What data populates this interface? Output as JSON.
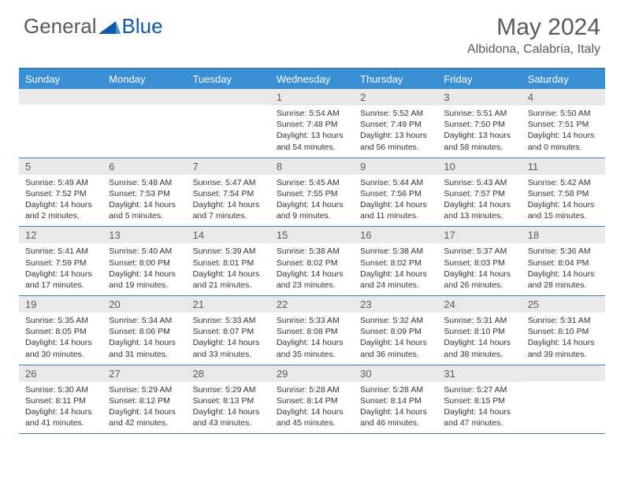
{
  "logo": {
    "text1": "General",
    "text2": "Blue",
    "color1": "#6a6a6a",
    "color2": "#3b8fd4",
    "tri_color": "#0d5aa7"
  },
  "title": "May 2024",
  "location": "Albidona, Calabria, Italy",
  "accent": "#3b8fd4",
  "border": "#3b7fbf",
  "daynum_bg": "#e9e9e9",
  "dow": [
    "Sunday",
    "Monday",
    "Tuesday",
    "Wednesday",
    "Thursday",
    "Friday",
    "Saturday"
  ],
  "weeks": [
    [
      null,
      null,
      null,
      {
        "n": "1",
        "sr": "5:54 AM",
        "ss": "7:48 PM",
        "dl": "13 hours and 54 minutes."
      },
      {
        "n": "2",
        "sr": "5:52 AM",
        "ss": "7:49 PM",
        "dl": "13 hours and 56 minutes."
      },
      {
        "n": "3",
        "sr": "5:51 AM",
        "ss": "7:50 PM",
        "dl": "13 hours and 58 minutes."
      },
      {
        "n": "4",
        "sr": "5:50 AM",
        "ss": "7:51 PM",
        "dl": "14 hours and 0 minutes."
      }
    ],
    [
      {
        "n": "5",
        "sr": "5:49 AM",
        "ss": "7:52 PM",
        "dl": "14 hours and 2 minutes."
      },
      {
        "n": "6",
        "sr": "5:48 AM",
        "ss": "7:53 PM",
        "dl": "14 hours and 5 minutes."
      },
      {
        "n": "7",
        "sr": "5:47 AM",
        "ss": "7:54 PM",
        "dl": "14 hours and 7 minutes."
      },
      {
        "n": "8",
        "sr": "5:45 AM",
        "ss": "7:55 PM",
        "dl": "14 hours and 9 minutes."
      },
      {
        "n": "9",
        "sr": "5:44 AM",
        "ss": "7:56 PM",
        "dl": "14 hours and 11 minutes."
      },
      {
        "n": "10",
        "sr": "5:43 AM",
        "ss": "7:57 PM",
        "dl": "14 hours and 13 minutes."
      },
      {
        "n": "11",
        "sr": "5:42 AM",
        "ss": "7:58 PM",
        "dl": "14 hours and 15 minutes."
      }
    ],
    [
      {
        "n": "12",
        "sr": "5:41 AM",
        "ss": "7:59 PM",
        "dl": "14 hours and 17 minutes."
      },
      {
        "n": "13",
        "sr": "5:40 AM",
        "ss": "8:00 PM",
        "dl": "14 hours and 19 minutes."
      },
      {
        "n": "14",
        "sr": "5:39 AM",
        "ss": "8:01 PM",
        "dl": "14 hours and 21 minutes."
      },
      {
        "n": "15",
        "sr": "5:38 AM",
        "ss": "8:02 PM",
        "dl": "14 hours and 23 minutes."
      },
      {
        "n": "16",
        "sr": "5:38 AM",
        "ss": "8:02 PM",
        "dl": "14 hours and 24 minutes."
      },
      {
        "n": "17",
        "sr": "5:37 AM",
        "ss": "8:03 PM",
        "dl": "14 hours and 26 minutes."
      },
      {
        "n": "18",
        "sr": "5:36 AM",
        "ss": "8:04 PM",
        "dl": "14 hours and 28 minutes."
      }
    ],
    [
      {
        "n": "19",
        "sr": "5:35 AM",
        "ss": "8:05 PM",
        "dl": "14 hours and 30 minutes."
      },
      {
        "n": "20",
        "sr": "5:34 AM",
        "ss": "8:06 PM",
        "dl": "14 hours and 31 minutes."
      },
      {
        "n": "21",
        "sr": "5:33 AM",
        "ss": "8:07 PM",
        "dl": "14 hours and 33 minutes."
      },
      {
        "n": "22",
        "sr": "5:33 AM",
        "ss": "8:08 PM",
        "dl": "14 hours and 35 minutes."
      },
      {
        "n": "23",
        "sr": "5:32 AM",
        "ss": "8:09 PM",
        "dl": "14 hours and 36 minutes."
      },
      {
        "n": "24",
        "sr": "5:31 AM",
        "ss": "8:10 PM",
        "dl": "14 hours and 38 minutes."
      },
      {
        "n": "25",
        "sr": "5:31 AM",
        "ss": "8:10 PM",
        "dl": "14 hours and 39 minutes."
      }
    ],
    [
      {
        "n": "26",
        "sr": "5:30 AM",
        "ss": "8:11 PM",
        "dl": "14 hours and 41 minutes."
      },
      {
        "n": "27",
        "sr": "5:29 AM",
        "ss": "8:12 PM",
        "dl": "14 hours and 42 minutes."
      },
      {
        "n": "28",
        "sr": "5:29 AM",
        "ss": "8:13 PM",
        "dl": "14 hours and 43 minutes."
      },
      {
        "n": "29",
        "sr": "5:28 AM",
        "ss": "8:14 PM",
        "dl": "14 hours and 45 minutes."
      },
      {
        "n": "30",
        "sr": "5:28 AM",
        "ss": "8:14 PM",
        "dl": "14 hours and 46 minutes."
      },
      {
        "n": "31",
        "sr": "5:27 AM",
        "ss": "8:15 PM",
        "dl": "14 hours and 47 minutes."
      },
      null
    ]
  ],
  "labels": {
    "sunrise": "Sunrise:",
    "sunset": "Sunset:",
    "daylight": "Daylight:"
  }
}
